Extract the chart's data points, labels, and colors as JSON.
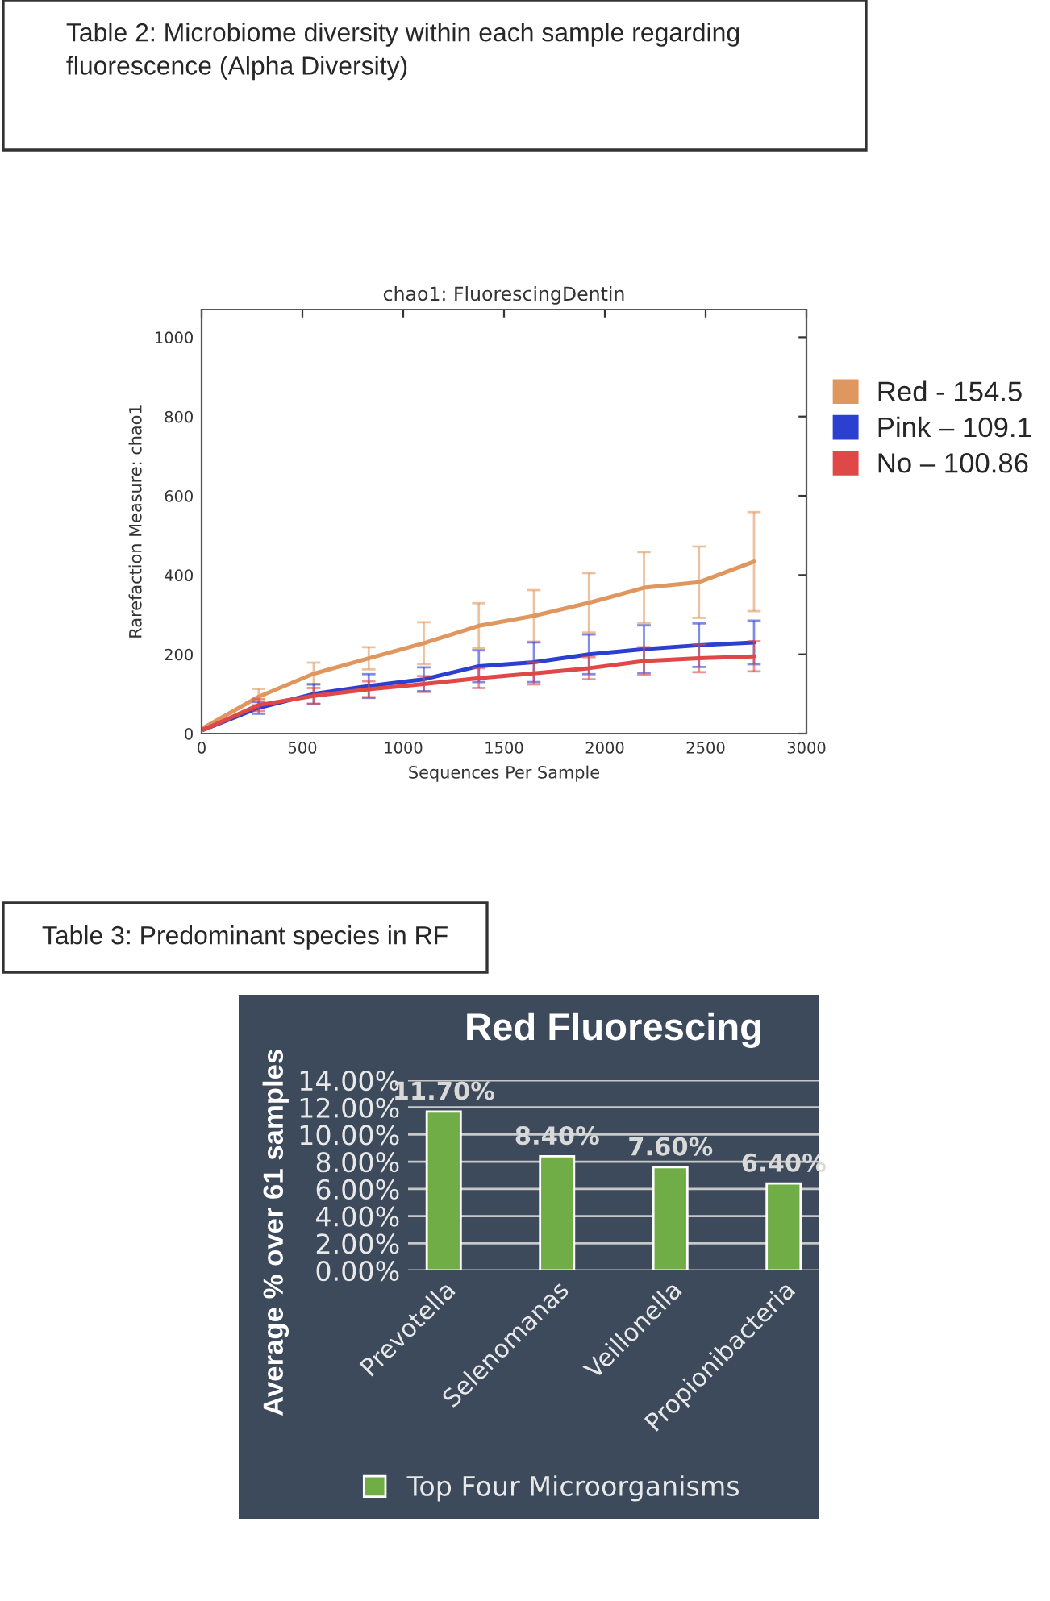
{
  "chart_data": [
    {
      "type": "line",
      "title": "chao1: FluorescingDentin",
      "xlabel": "Sequences Per Sample",
      "ylabel": "Rarefaction Measure: chao1",
      "annotations": [
        "Table 2: Microbiome diversity within each sample regarding fluorescence (Alpha Diversity)"
      ],
      "x": [
        10,
        283,
        556,
        829,
        1102,
        1375,
        1648,
        1921,
        2194,
        2467,
        2740
      ],
      "series": [
        {
          "name": "Red - 154.5",
          "color": "#e0975f",
          "values": [
            15,
            93,
            151,
            190,
            228,
            272,
            297,
            330,
            368,
            382,
            434
          ],
          "errors": [
            null,
            20,
            28,
            28,
            53,
            57,
            65,
            75,
            90,
            90,
            125
          ]
        },
        {
          "name": "Pink – 109.1",
          "color": "#2b3fd0",
          "values": [
            10,
            65,
            100,
            120,
            137,
            170,
            180,
            200,
            213,
            223,
            230
          ],
          "errors": [
            null,
            15,
            25,
            30,
            30,
            40,
            50,
            50,
            60,
            55,
            55
          ]
        },
        {
          "name": "No – 100.86",
          "color": "#e04848",
          "values": [
            10,
            72,
            95,
            112,
            125,
            140,
            152,
            165,
            183,
            190,
            195
          ],
          "errors": [
            null,
            15,
            20,
            20,
            20,
            25,
            28,
            28,
            35,
            35,
            38
          ]
        }
      ],
      "xlim": [
        0,
        3000
      ],
      "xticks": [
        0,
        500,
        1000,
        1500,
        2000,
        2500,
        3000
      ],
      "ylim": [
        0,
        1070
      ],
      "yticks": [
        0,
        200,
        400,
        600,
        800,
        1000
      ],
      "grid": false,
      "legend": "right",
      "marker": "none",
      "line_style": "solid"
    },
    {
      "type": "bar",
      "title": "Red Fluorescing",
      "ylabel": "Average % over 61 samples",
      "annotations": [
        "Table 3: Predominant species in RF"
      ],
      "categories": [
        "Prevotella",
        "Selenomanas",
        "Veillonella",
        "Propionibacteria"
      ],
      "series": [
        {
          "name": "Top Four Microorganisms",
          "color": "#70ad47",
          "values": [
            11.7,
            8.4,
            7.6,
            6.4
          ],
          "value_labels": [
            "11.70%",
            "8.40%",
            "7.60%",
            "6.40%"
          ]
        }
      ],
      "ylim": [
        0,
        14
      ],
      "yticks": [
        {
          "value": 0,
          "label": "0.00%"
        },
        {
          "value": 2,
          "label": "2.00%"
        },
        {
          "value": 4,
          "label": "4.00%"
        },
        {
          "value": 6,
          "label": "6.00%"
        },
        {
          "value": 8,
          "label": "8.00%"
        },
        {
          "value": 10,
          "label": "10.00%"
        },
        {
          "value": 12,
          "label": "12.00%"
        },
        {
          "value": 14,
          "label": "14.00%"
        }
      ],
      "grid": "y",
      "legend": "bottom"
    }
  ]
}
